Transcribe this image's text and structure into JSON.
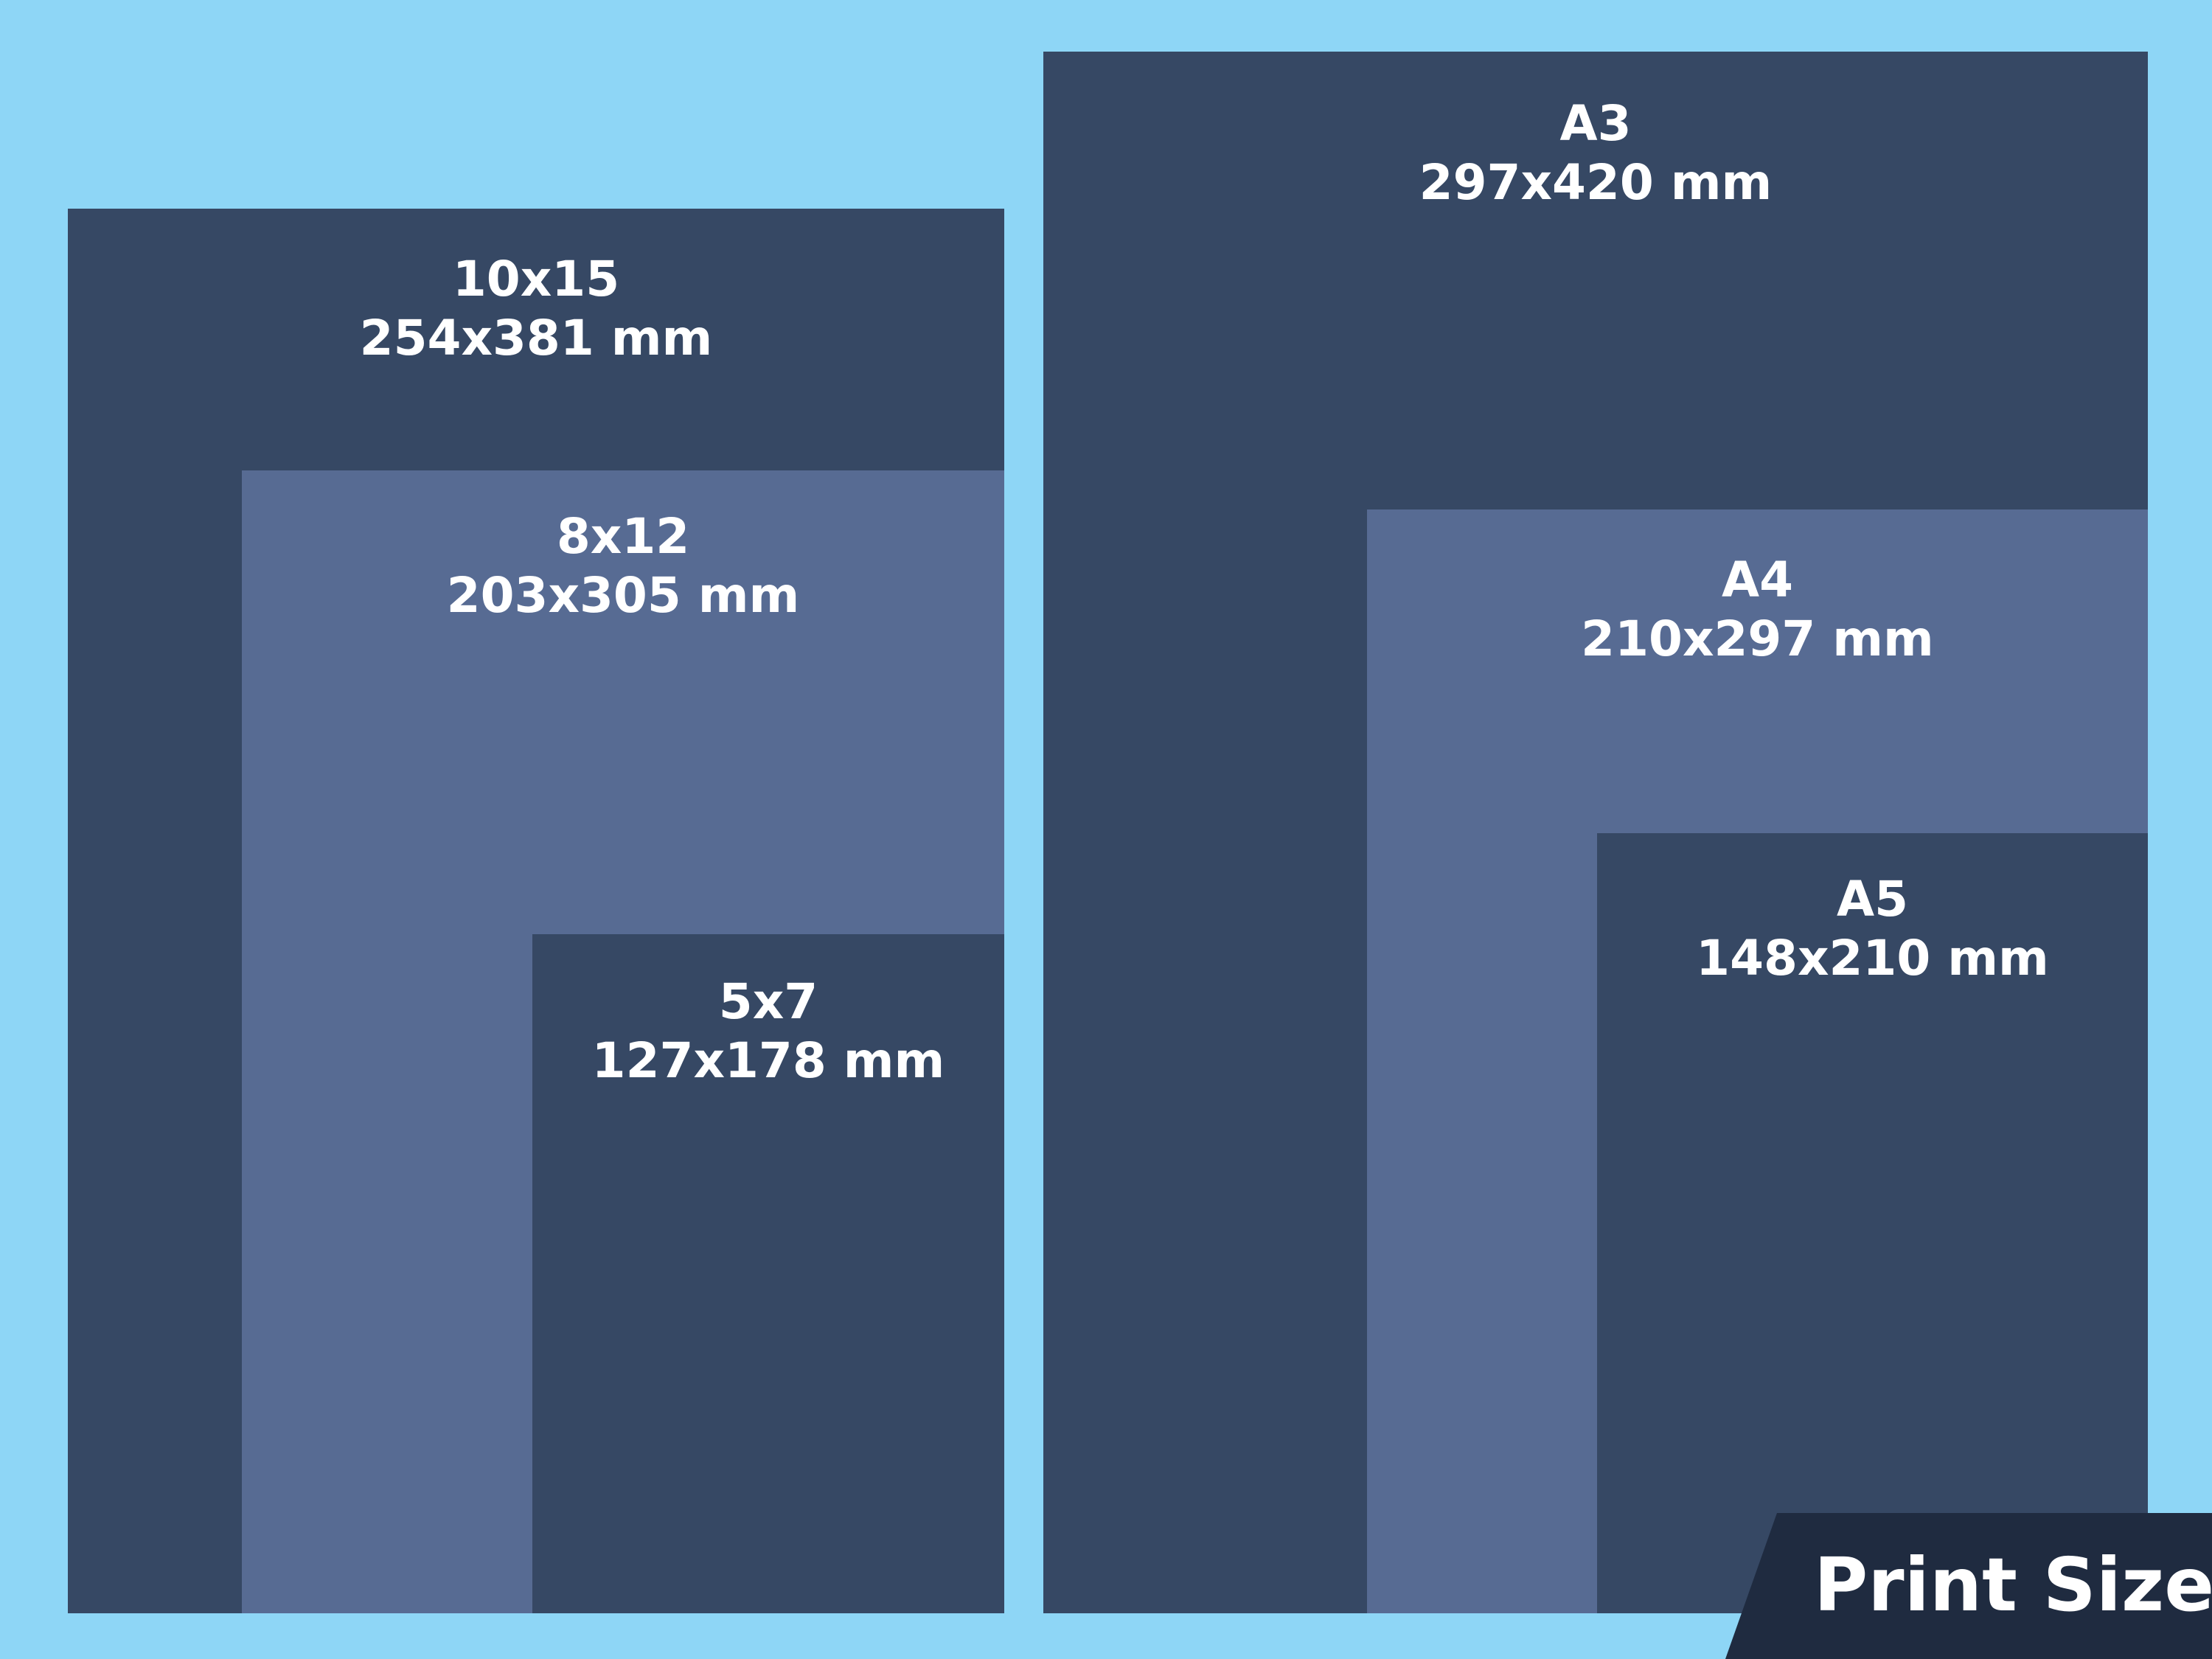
{
  "colors": {
    "background": "#8ed6f6",
    "dark": "#364864",
    "light": "#576b93",
    "badge": "#1f2b40",
    "text": "#ffffff"
  },
  "sizes": {
    "s10x15": {
      "name": "10x15",
      "dims": "254x381 mm"
    },
    "s8x12": {
      "name": "8x12",
      "dims": "203x305 mm"
    },
    "s5x7": {
      "name": "5x7",
      "dims": "127x178 mm"
    },
    "a3": {
      "name": "A3",
      "dims": "297x420 mm"
    },
    "a4": {
      "name": "A4",
      "dims": "210x297 mm"
    },
    "a5": {
      "name": "A5",
      "dims": "148x210 mm"
    }
  },
  "badge": {
    "title": "Print Sizes"
  }
}
